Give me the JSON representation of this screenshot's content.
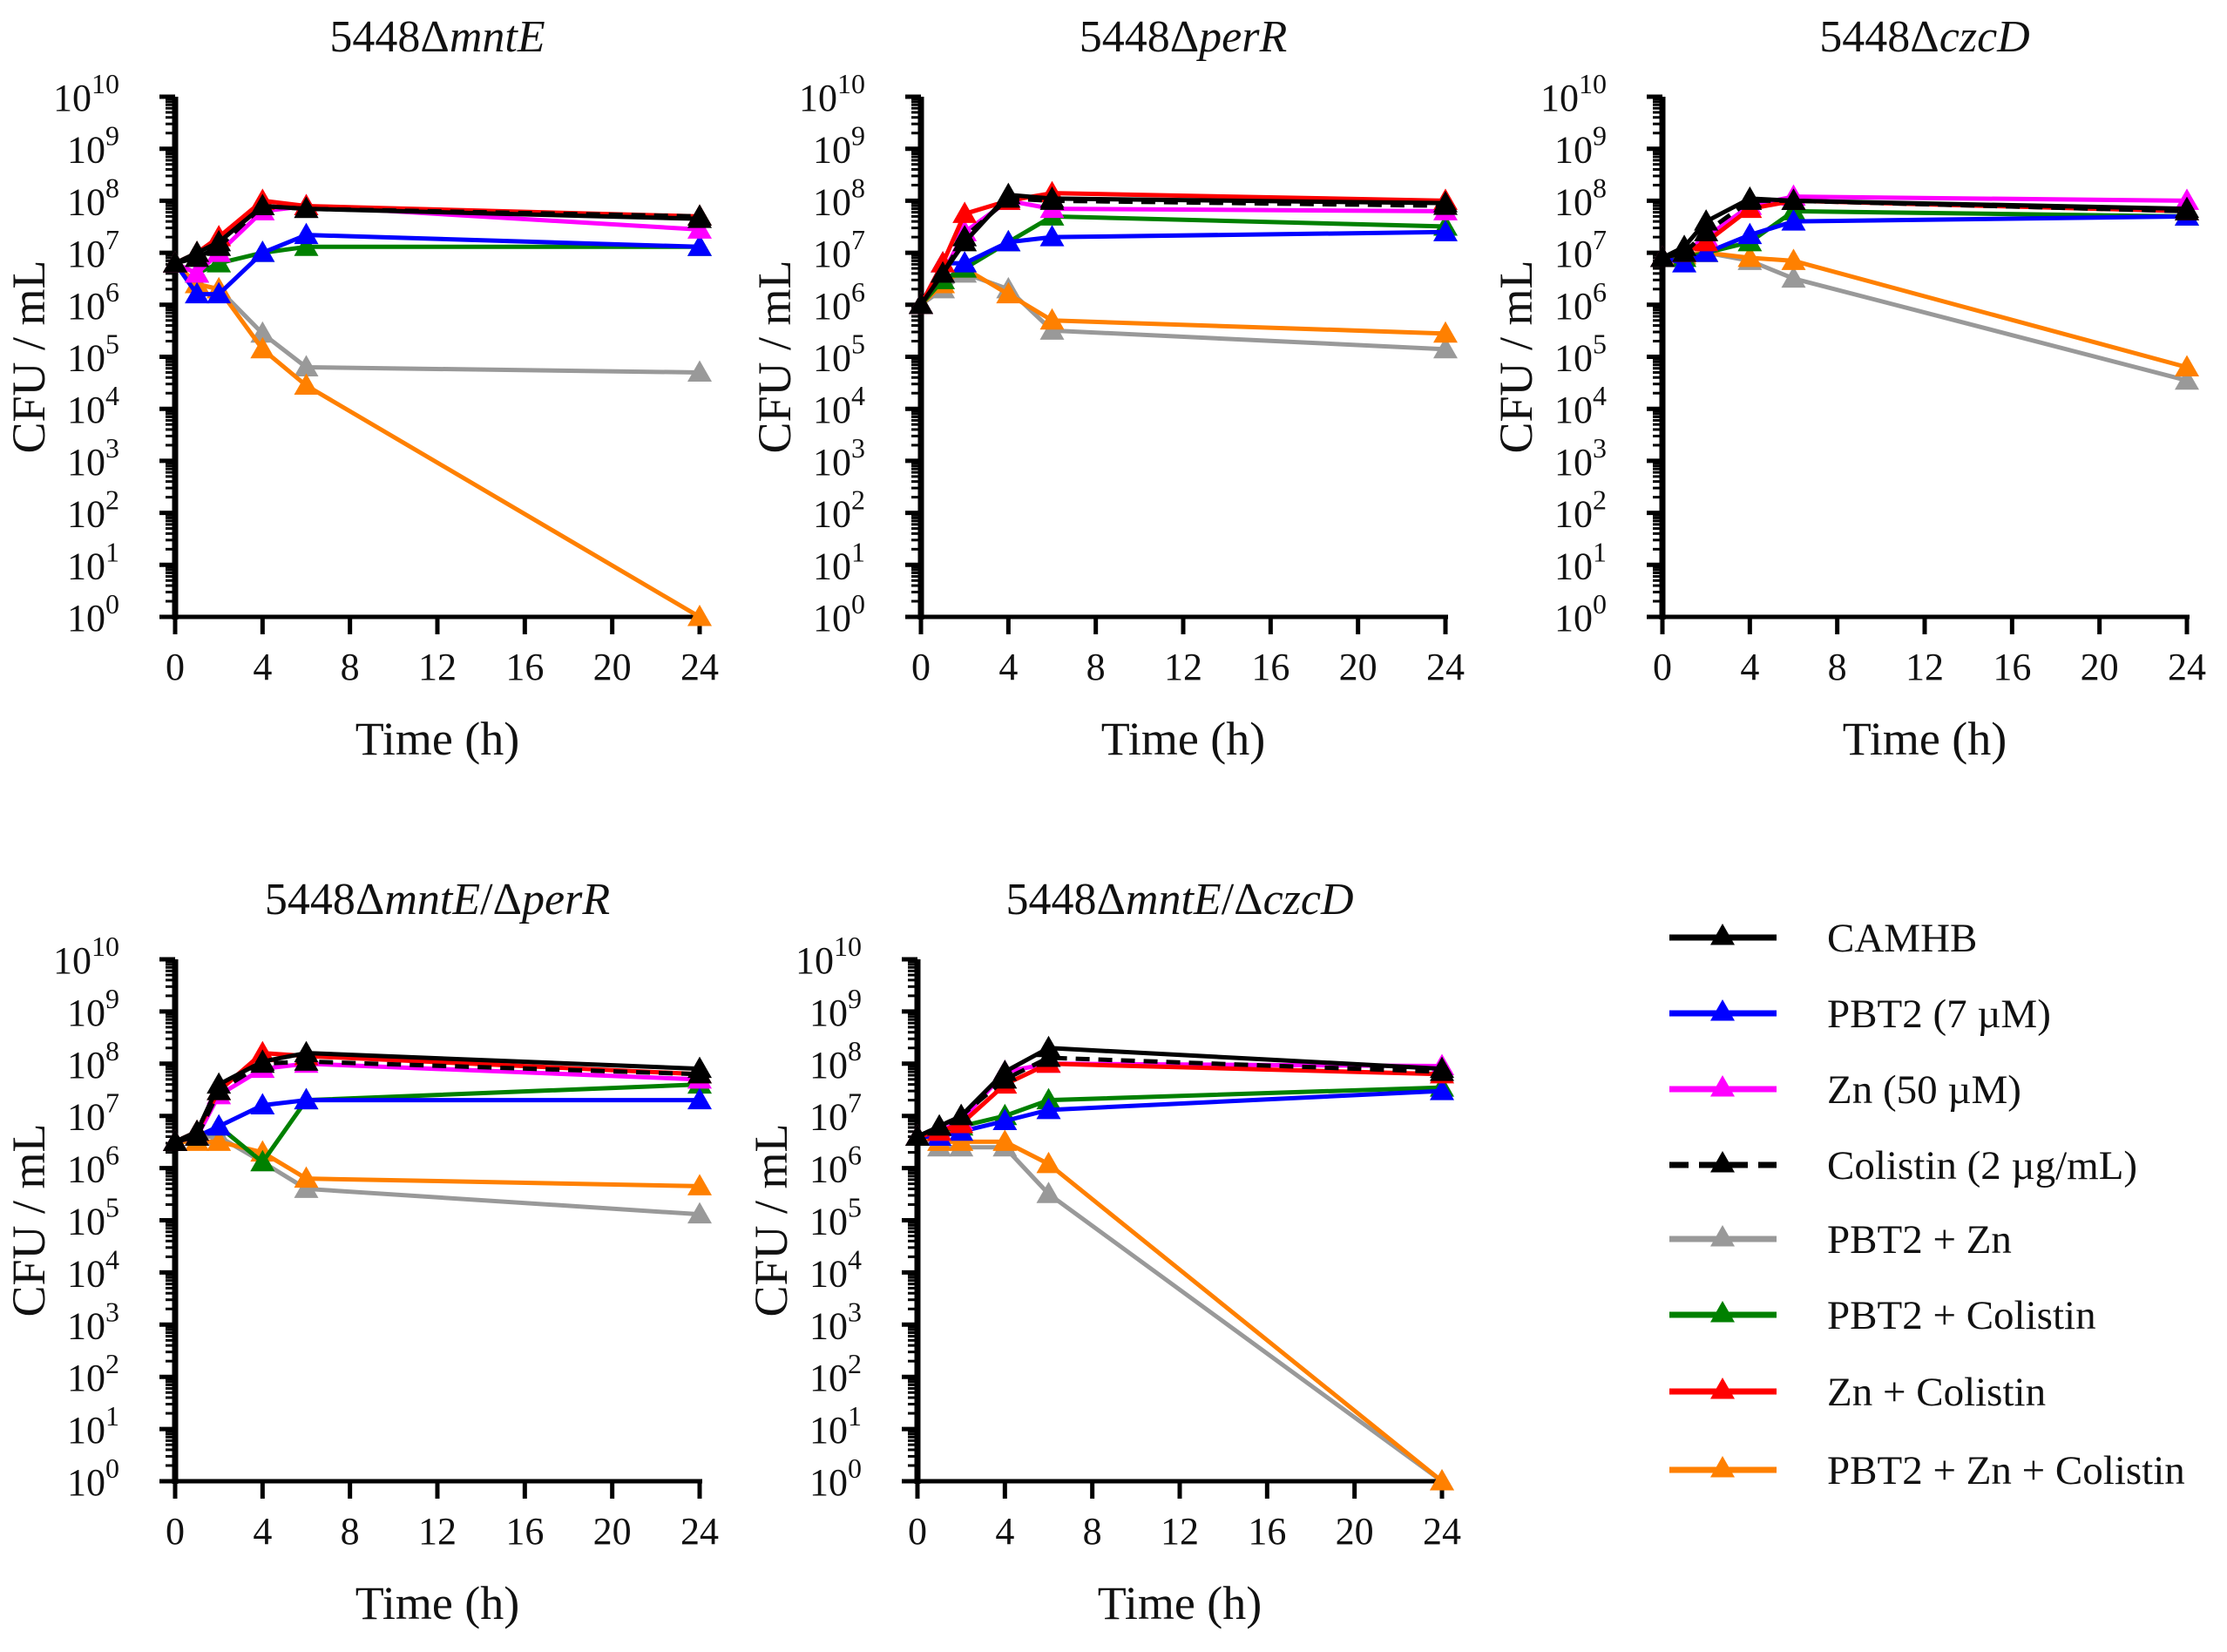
{
  "legend": [
    {
      "name": "CAMHB",
      "color": "#000000",
      "dashed": false
    },
    {
      "name": "PBT2 (7 µM)",
      "color": "#0000ff",
      "dashed": false
    },
    {
      "name": "Zn (50 µM)",
      "color": "#ff00ff",
      "dashed": false
    },
    {
      "name": "Colistin (2 µg/mL)",
      "color": "#000000",
      "dashed": true
    },
    {
      "name": "PBT2 + Zn",
      "color": "#999999",
      "dashed": false
    },
    {
      "name": "PBT2 + Colistin",
      "color": "#008000",
      "dashed": false
    },
    {
      "name": "Zn + Colistin",
      "color": "#ff0000",
      "dashed": false
    },
    {
      "name": "PBT2 + Zn + Colistin",
      "color": "#ff8000",
      "dashed": false
    }
  ],
  "chart_data": [
    {
      "type": "line",
      "title": [
        {
          "text": "5448Δ"
        },
        {
          "text": "mntE",
          "italic": true
        }
      ],
      "xlabel": "Time (h)",
      "ylabel": "CFU / mL",
      "xlim": [
        0,
        24
      ],
      "ylim": [
        1,
        10000000000.0
      ],
      "yscale": "log",
      "xticks": [
        "0",
        "4",
        "8",
        "12",
        "16",
        "20",
        "24"
      ],
      "yticks": [
        "10^0",
        "10^1",
        "10^2",
        "10^3",
        "10^4",
        "10^5",
        "10^6",
        "10^7",
        "10^8",
        "10^9",
        "10^10"
      ],
      "x": [
        0,
        1,
        2,
        4,
        6,
        24
      ],
      "series": [
        {
          "name": "CAMHB",
          "values": [
            6300000.0,
            10000000.0,
            16000000.0,
            79000000.0,
            70000000.0,
            45000000.0
          ]
        },
        {
          "name": "PBT2 (7 µM)",
          "values": [
            6300000.0,
            1600000.0,
            1600000.0,
            10000000.0,
            22000000.0,
            13000000.0
          ]
        },
        {
          "name": "Zn (50 µM)",
          "values": [
            6300000.0,
            4000000.0,
            10000000.0,
            63000000.0,
            79000000.0,
            28000000.0
          ]
        },
        {
          "name": "Colistin (2 µg/mL)",
          "values": [
            6300000.0,
            8000000.0,
            13000000.0,
            79000000.0,
            70000000.0,
            50000000.0
          ]
        },
        {
          "name": "PBT2 + Zn",
          "values": [
            6300000.0,
            2500000.0,
            2000000.0,
            280000.0,
            63000.0,
            50000.0
          ]
        },
        {
          "name": "PBT2 + Colistin",
          "values": [
            6300000.0,
            4000000.0,
            6300000.0,
            10000000.0,
            13000000.0,
            13000000.0
          ]
        },
        {
          "name": "Zn + Colistin",
          "values": [
            6300000.0,
            10000000.0,
            20000000.0,
            100000000.0,
            79000000.0,
            50000000.0
          ]
        },
        {
          "name": "PBT2 + Zn + Colistin",
          "values": [
            6300000.0,
            2500000.0,
            2000000.0,
            140000.0,
            28000.0,
            1
          ]
        }
      ]
    },
    {
      "type": "line",
      "title": [
        {
          "text": "5448Δ"
        },
        {
          "text": "perR",
          "italic": true
        }
      ],
      "xlabel": "Time (h)",
      "ylabel": "CFU / mL",
      "xlim": [
        0,
        24
      ],
      "ylim": [
        1,
        10000000000.0
      ],
      "yscale": "log",
      "xticks": [
        "0",
        "4",
        "8",
        "12",
        "16",
        "20",
        "24"
      ],
      "yticks": [
        "10^0",
        "10^1",
        "10^2",
        "10^3",
        "10^4",
        "10^5",
        "10^6",
        "10^7",
        "10^8",
        "10^9",
        "10^10"
      ],
      "x": [
        0,
        1,
        2,
        4,
        6,
        24
      ],
      "series": [
        {
          "name": "CAMHB",
          "values": [
            1000000.0,
            4000000.0,
            16000000.0,
            130000000.0,
            110000000.0,
            90000000.0
          ]
        },
        {
          "name": "PBT2 (7 µM)",
          "values": [
            1000000.0,
            6300000.0,
            6300000.0,
            16000000.0,
            20000000.0,
            25000000.0
          ]
        },
        {
          "name": "Zn (50 µM)",
          "values": [
            1000000.0,
            4000000.0,
            25000000.0,
            100000000.0,
            70000000.0,
            63000000.0
          ]
        },
        {
          "name": "Colistin (2 µg/mL)",
          "values": [
            1000000.0,
            4000000.0,
            20000000.0,
            110000000.0,
            100000000.0,
            80000000.0
          ]
        },
        {
          "name": "PBT2 + Zn",
          "values": [
            1000000.0,
            2000000.0,
            4000000.0,
            2000000.0,
            320000.0,
            140000.0
          ]
        },
        {
          "name": "PBT2 + Colistin",
          "values": [
            1000000.0,
            3000000.0,
            5000000.0,
            16000000.0,
            50000000.0,
            32000000.0
          ]
        },
        {
          "name": "Zn + Colistin",
          "values": [
            1000000.0,
            6300000.0,
            56000000.0,
            100000000.0,
            140000000.0,
            100000000.0
          ]
        },
        {
          "name": "PBT2 + Zn + Colistin",
          "values": [
            1000000.0,
            2500000.0,
            5000000.0,
            1600000.0,
            500000.0,
            280000.0
          ]
        }
      ]
    },
    {
      "type": "line",
      "title": [
        {
          "text": "5448Δ"
        },
        {
          "text": "czcD",
          "italic": true
        }
      ],
      "xlabel": "Time (h)",
      "ylabel": "CFU / mL",
      "xlim": [
        0,
        24
      ],
      "ylim": [
        1,
        10000000000.0
      ],
      "yscale": "log",
      "xticks": [
        "0",
        "4",
        "8",
        "12",
        "16",
        "20",
        "24"
      ],
      "yticks": [
        "10^0",
        "10^1",
        "10^2",
        "10^3",
        "10^4",
        "10^5",
        "10^6",
        "10^7",
        "10^8",
        "10^9",
        "10^10"
      ],
      "x": [
        0,
        1,
        2,
        4,
        6,
        24
      ],
      "series": [
        {
          "name": "CAMHB",
          "values": [
            8000000.0,
            13000000.0,
            40000000.0,
            110000000.0,
            100000000.0,
            70000000.0
          ]
        },
        {
          "name": "PBT2 (7 µM)",
          "values": [
            8000000.0,
            6300000.0,
            10000000.0,
            22000000.0,
            40000000.0,
            50000000.0
          ]
        },
        {
          "name": "Zn (50 µM)",
          "values": [
            8000000.0,
            10000000.0,
            20000000.0,
            80000000.0,
            120000000.0,
            100000000.0
          ]
        },
        {
          "name": "Colistin (2 µg/mL)",
          "values": [
            8000000.0,
            10000000.0,
            25000000.0,
            100000000.0,
            100000000.0,
            63000000.0
          ]
        },
        {
          "name": "PBT2 + Zn",
          "values": [
            8000000.0,
            9000000.0,
            10000000.0,
            7000000.0,
            3200000.0,
            35000.0
          ]
        },
        {
          "name": "PBT2 + Colistin",
          "values": [
            8000000.0,
            8000000.0,
            10000000.0,
            16000000.0,
            63000000.0,
            50000000.0
          ]
        },
        {
          "name": "Zn + Colistin",
          "values": [
            8000000.0,
            10000000.0,
            16000000.0,
            70000000.0,
            100000000.0,
            63000000.0
          ]
        },
        {
          "name": "PBT2 + Zn + Colistin",
          "values": [
            8000000.0,
            9000000.0,
            10000000.0,
            8000000.0,
            7000000.0,
            63000.0
          ]
        }
      ]
    },
    {
      "type": "line",
      "title": [
        {
          "text": "5448Δ"
        },
        {
          "text": "mntE",
          "italic": true
        },
        {
          "text": "/Δ"
        },
        {
          "text": "perR",
          "italic": true
        }
      ],
      "xlabel": "Time (h)",
      "ylabel": "CFU / mL",
      "xlim": [
        0,
        24
      ],
      "ylim": [
        1,
        10000000000.0
      ],
      "yscale": "log",
      "xticks": [
        "0",
        "4",
        "8",
        "12",
        "16",
        "20",
        "24"
      ],
      "yticks": [
        "10^0",
        "10^1",
        "10^2",
        "10^3",
        "10^4",
        "10^5",
        "10^6",
        "10^7",
        "10^8",
        "10^9",
        "10^10"
      ],
      "x": [
        0,
        1,
        2,
        4,
        6,
        24
      ],
      "series": [
        {
          "name": "CAMHB",
          "values": [
            3200000.0,
            5000000.0,
            40000000.0,
            110000000.0,
            160000000.0,
            80000000.0
          ]
        },
        {
          "name": "PBT2 (7 µM)",
          "values": [
            3200000.0,
            4000000.0,
            6300000.0,
            16000000.0,
            20000000.0,
            20000000.0
          ]
        },
        {
          "name": "Zn (50 µM)",
          "values": [
            3200000.0,
            4000000.0,
            25000000.0,
            80000000.0,
            100000000.0,
            50000000.0
          ]
        },
        {
          "name": "Colistin (2 µg/mL)",
          "values": [
            3200000.0,
            4000000.0,
            30000000.0,
            100000000.0,
            110000000.0,
            63000000.0
          ]
        },
        {
          "name": "PBT2 + Zn",
          "values": [
            3200000.0,
            4000000.0,
            4000000.0,
            1300000.0,
            400000.0,
            130000.0
          ]
        },
        {
          "name": "PBT2 + Colistin",
          "values": [
            3200000.0,
            4000000.0,
            6300000.0,
            1300000.0,
            20000000.0,
            40000000.0
          ]
        },
        {
          "name": "Zn + Colistin",
          "values": [
            3200000.0,
            5000000.0,
            30000000.0,
            160000000.0,
            140000000.0,
            63000000.0
          ]
        },
        {
          "name": "PBT2 + Zn + Colistin",
          "values": [
            3200000.0,
            3200000.0,
            3200000.0,
            2000000.0,
            630000.0,
            450000.0
          ]
        }
      ]
    },
    {
      "type": "line",
      "title": [
        {
          "text": "5448Δ"
        },
        {
          "text": "mntE",
          "italic": true
        },
        {
          "text": "/Δ"
        },
        {
          "text": "czcD",
          "italic": true
        }
      ],
      "xlabel": "Time (h)",
      "ylabel": "CFU / mL",
      "xlim": [
        0,
        24
      ],
      "ylim": [
        1,
        10000000000.0
      ],
      "yscale": "log",
      "xticks": [
        "0",
        "4",
        "8",
        "12",
        "16",
        "20",
        "24"
      ],
      "yticks": [
        "10^0",
        "10^1",
        "10^2",
        "10^3",
        "10^4",
        "10^5",
        "10^6",
        "10^7",
        "10^8",
        "10^9",
        "10^10"
      ],
      "x": [
        0,
        1,
        2,
        4,
        6,
        24
      ],
      "series": [
        {
          "name": "CAMHB",
          "values": [
            4000000.0,
            6300000.0,
            10000000.0,
            70000000.0,
            200000000.0,
            80000000.0
          ]
        },
        {
          "name": "PBT2 (7 µM)",
          "values": [
            4000000.0,
            4000000.0,
            5000000.0,
            8000000.0,
            13000000.0,
            30000000.0
          ]
        },
        {
          "name": "Zn (50 µM)",
          "values": [
            4000000.0,
            5000000.0,
            8000000.0,
            70000000.0,
            100000000.0,
            90000000.0
          ]
        },
        {
          "name": "Colistin (2 µg/mL)",
          "values": [
            4000000.0,
            6300000.0,
            10000000.0,
            50000000.0,
            130000000.0,
            70000000.0
          ]
        },
        {
          "name": "PBT2 + Zn",
          "values": [
            4000000.0,
            2500000.0,
            2500000.0,
            2500000.0,
            320000.0,
            1
          ]
        },
        {
          "name": "PBT2 + Colistin",
          "values": [
            4000000.0,
            5000000.0,
            6300000.0,
            10000000.0,
            20000000.0,
            35000000.0
          ]
        },
        {
          "name": "Zn + Colistin",
          "values": [
            4000000.0,
            5000000.0,
            7000000.0,
            40000000.0,
            100000000.0,
            63000000.0
          ]
        },
        {
          "name": "PBT2 + Zn + Colistin",
          "values": [
            4000000.0,
            3200000.0,
            3200000.0,
            3200000.0,
            1200000.0,
            1
          ]
        }
      ]
    }
  ]
}
